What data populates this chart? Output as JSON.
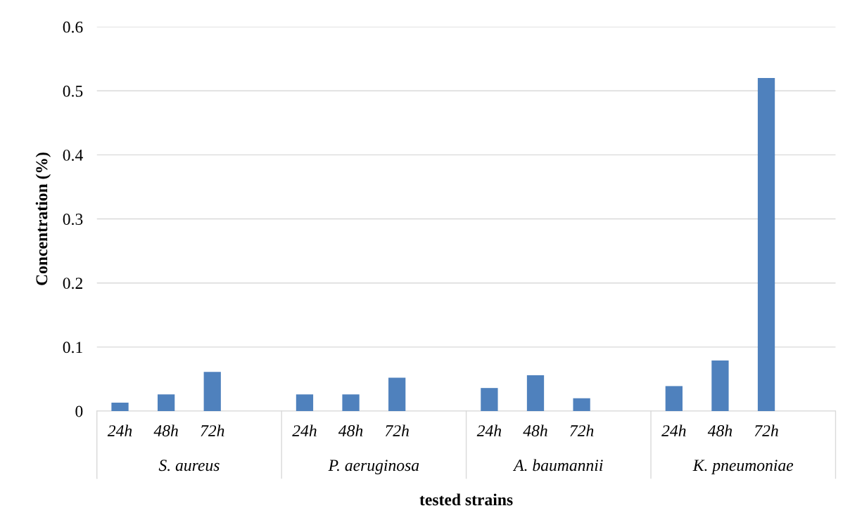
{
  "chart_data": {
    "type": "bar",
    "ylabel": "Concentration (%)",
    "xlabel": "tested strains",
    "categories": [
      "24h",
      "48h",
      "72h",
      null,
      "24h",
      "48h",
      "72h",
      null,
      "24h",
      "48h",
      "72h",
      null,
      "24h",
      "48h",
      "72h",
      null
    ],
    "values": [
      0.013,
      0.026,
      0.061,
      null,
      0.026,
      0.026,
      0.052,
      null,
      0.036,
      0.056,
      0.02,
      null,
      0.039,
      0.079,
      0.52,
      null
    ],
    "color": "#4f81bd",
    "annotations": [
      "S. aureus",
      "P. aeruginosa",
      "A. baumannii",
      "K. pneumoniae"
    ],
    "ylim": [
      0,
      0.6
    ],
    "yticks": [
      0,
      0.1,
      0.2,
      0.3,
      0.4,
      0.5,
      0.6
    ],
    "grid": "y",
    "legend": false
  }
}
